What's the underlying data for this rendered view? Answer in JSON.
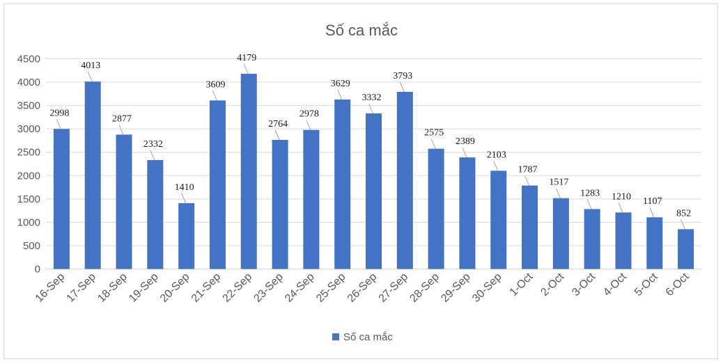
{
  "chart_data": {
    "type": "bar",
    "title": "Số ca mắc",
    "xlabel": "",
    "ylabel": "",
    "categories": [
      "16-Sep",
      "17-Sep",
      "18-Sep",
      "19-Sep",
      "20-Sep",
      "21-Sep",
      "22-Sep",
      "23-Sep",
      "24-Sep",
      "25-Sep",
      "26-Sep",
      "27-Sep",
      "28-Sep",
      "29-Sep",
      "30-Sep",
      "1-Oct",
      "2-Oct",
      "3-Oct",
      "4-Oct",
      "5-Oct",
      "6-Oct"
    ],
    "series": [
      {
        "name": "Số ca mắc",
        "values": [
          2998,
          4013,
          2877,
          2332,
          1410,
          3609,
          4179,
          2764,
          2978,
          3629,
          3332,
          3793,
          2575,
          2389,
          2103,
          1787,
          1517,
          1283,
          1210,
          1107,
          852
        ]
      }
    ],
    "ylim": [
      0,
      4500
    ],
    "yticks": [
      0,
      500,
      1000,
      1500,
      2000,
      2500,
      3000,
      3500,
      4000,
      4500
    ],
    "grid": true,
    "legend": "bottom",
    "colors": {
      "bar": "#4472c4",
      "grid": "#d9d9d9",
      "text": "#595959",
      "label": "#1a1a1a"
    }
  }
}
